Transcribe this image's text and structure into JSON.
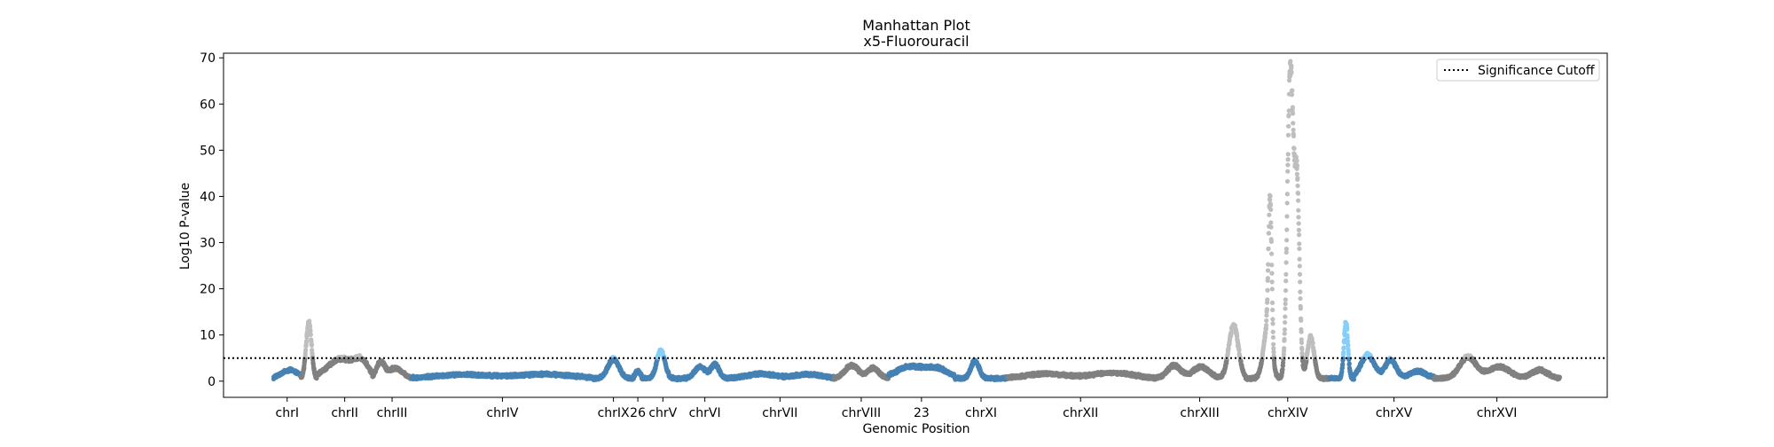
{
  "chart_data": {
    "type": "scatter",
    "title": "Manhattan Plot",
    "subtitle": "x5-Fluorouracil",
    "xlabel": "Genomic Position",
    "ylabel": "Log10 P-value",
    "ylim": [
      -3.5,
      71
    ],
    "yticks": [
      0,
      10,
      20,
      30,
      40,
      50,
      60,
      70
    ],
    "grid": false,
    "legend": {
      "placement": "top-right",
      "entries": [
        "Significance Cutoff"
      ]
    },
    "significance_cutoff": 5,
    "colors": {
      "blue": "#4682b4",
      "gray": "#808080",
      "sig_gray": "#bebebe",
      "sig_blue": "#87cefa",
      "brown": "#a0522d",
      "cutoff": "#000000"
    },
    "chromosomes": [
      {
        "label": "chrI",
        "color": "blue",
        "range": [
          0.0,
          2.0
        ],
        "peaks": [
          [
            1.2,
            1.8,
            0.6
          ]
        ]
      },
      {
        "label": "",
        "color": "gray",
        "range": [
          2.0,
          3.2
        ],
        "peaks": [
          [
            2.6,
            12,
            0.2
          ]
        ]
      },
      {
        "label": "chrII",
        "color": "gray",
        "range": [
          3.2,
          7.3
        ],
        "peaks": [
          [
            5.0,
            4.2,
            1.0
          ],
          [
            6.5,
            3.0,
            0.5
          ]
        ]
      },
      {
        "label": "chrIII",
        "color": "gray",
        "range": [
          7.3,
          10.2
        ],
        "peaks": [
          [
            7.9,
            3.5,
            0.3
          ],
          [
            9.0,
            2.2,
            0.5
          ]
        ]
      },
      {
        "label": "chrIV",
        "color": "blue",
        "range": [
          10.2,
          23.6
        ],
        "peaks": [
          [
            14.0,
            0.8,
            2.0
          ],
          [
            20.0,
            0.9,
            2.0
          ]
        ]
      },
      {
        "label": "chrIX",
        "color": "blue",
        "range": [
          23.6,
          26.6
        ],
        "peaks": [
          [
            25.1,
            4.2,
            0.4
          ]
        ]
      },
      {
        "label": "26",
        "color": "blue",
        "range": [
          26.6,
          27.2
        ],
        "peaks": [
          [
            26.9,
            1.5,
            0.2
          ]
        ]
      },
      {
        "label": "chrV",
        "color": "blue",
        "range": [
          27.2,
          30.3
        ],
        "peaks": [
          [
            28.6,
            6.0,
            0.3
          ]
        ]
      },
      {
        "label": "chrVI",
        "color": "blue",
        "range": [
          30.3,
          33.4
        ],
        "peaks": [
          [
            31.5,
            2.5,
            0.4
          ],
          [
            32.6,
            3.0,
            0.3
          ]
        ]
      },
      {
        "label": "chrVII",
        "color": "blue",
        "range": [
          33.4,
          41.4
        ],
        "peaks": [
          [
            36.0,
            1.0,
            1.0
          ],
          [
            39.5,
            0.9,
            1.0
          ]
        ]
      },
      {
        "label": "chrVIII",
        "color": "gray",
        "range": [
          41.4,
          45.4
        ],
        "peaks": [
          [
            42.7,
            2.8,
            0.5
          ],
          [
            44.3,
            2.2,
            0.4
          ]
        ]
      },
      {
        "label": "23",
        "color": "blue",
        "range": [
          45.4,
          50.3
        ],
        "peaks": [
          [
            47.0,
            2.5,
            1.0
          ],
          [
            49.0,
            2.0,
            0.8
          ]
        ]
      },
      {
        "label": "chrXI",
        "color": "blue",
        "range": [
          50.3,
          54.2
        ],
        "peaks": [
          [
            51.8,
            3.8,
            0.3
          ]
        ]
      },
      {
        "label": "chrXII",
        "color": "gray",
        "range": [
          54.2,
          65.0
        ],
        "peaks": [
          [
            57.0,
            1.0,
            1.5
          ],
          [
            62.0,
            1.2,
            1.5
          ]
        ]
      },
      {
        "label": "chrXIII",
        "color": "gray",
        "range": [
          65.0,
          71.8
        ],
        "peaks": [
          [
            66.5,
            2.8,
            0.5
          ],
          [
            68.5,
            2.5,
            0.6
          ],
          [
            70.9,
            11.5,
            0.35
          ]
        ]
      },
      {
        "label": "chrXIV",
        "color": "gray",
        "range": [
          71.8,
          78.0
        ],
        "peaks": [
          [
            73.4,
            10.5,
            0.3
          ],
          [
            73.6,
            31,
            0.12
          ],
          [
            75.1,
            67,
            0.22
          ],
          [
            75.6,
            40,
            0.18
          ],
          [
            76.6,
            9.0,
            0.25
          ]
        ]
      },
      {
        "label": "",
        "color": "blue",
        "range": [
          78.0,
          79.8
        ],
        "peaks": [
          [
            79.2,
            12,
            0.15
          ]
        ]
      },
      {
        "label": "chrXV",
        "color": "blue",
        "range": [
          79.8,
          85.7
        ],
        "peaks": [
          [
            80.8,
            5.0,
            0.5
          ],
          [
            82.5,
            4.0,
            0.4
          ],
          [
            84.5,
            1.5,
            0.6
          ]
        ]
      },
      {
        "label": "chrXVI",
        "color": "gray",
        "range": [
          85.7,
          95.0
        ],
        "peaks": [
          [
            88.2,
            4.6,
            0.6
          ],
          [
            90.5,
            2.5,
            0.8
          ],
          [
            93.5,
            1.8,
            0.6
          ]
        ]
      }
    ],
    "xlim": [
      -3.7,
      98.5
    ]
  }
}
